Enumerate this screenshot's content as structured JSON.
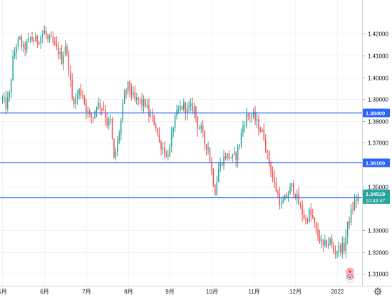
{
  "chart_data": {
    "type": "candlestick",
    "y_axis": {
      "range": [
        1.3045,
        1.4355
      ],
      "ticks": [
        "1.42000",
        "1.41000",
        "1.40000",
        "1.39000",
        "1.38000",
        "1.37000",
        "1.35000",
        "1.33000",
        "1.32000",
        "1.31000"
      ],
      "tick_values": [
        1.42,
        1.41,
        1.4,
        1.39,
        1.38,
        1.37,
        1.35,
        1.33,
        1.32,
        1.31
      ],
      "position": "right"
    },
    "x_axis": {
      "labels": [
        "5月",
        "6月",
        "7月",
        "8月",
        "9月",
        "10月",
        "11月",
        "12月",
        "2022"
      ],
      "label_indices": [
        0,
        24,
        48,
        72,
        96,
        120,
        144,
        168,
        192
      ]
    },
    "horizontal_lines": [
      {
        "value": 1.384,
        "label": "1.38400",
        "color": "#2962ff"
      },
      {
        "value": 1.361,
        "label": "1.36100",
        "color": "#2962ff"
      },
      {
        "value": 1.345,
        "label": "1.34500",
        "color": "#2962ff"
      }
    ],
    "current_price": {
      "value": 1.34519,
      "label": "1.34519",
      "countdown": "10:43:47",
      "color": "#26a69a"
    },
    "colors": {
      "up": "#26a69a",
      "down": "#ef5350",
      "grid": "#f0f3fa"
    },
    "grid": true,
    "waypoints": [
      [
        0,
        1.39
      ],
      [
        2,
        1.387
      ],
      [
        4,
        1.392
      ],
      [
        6,
        1.408
      ],
      [
        8,
        1.415
      ],
      [
        10,
        1.417
      ],
      [
        12,
        1.413
      ],
      [
        14,
        1.415
      ],
      [
        16,
        1.418
      ],
      [
        18,
        1.417
      ],
      [
        20,
        1.417
      ],
      [
        22,
        1.419
      ],
      [
        24,
        1.421
      ],
      [
        26,
        1.417
      ],
      [
        28,
        1.417
      ],
      [
        30,
        1.414
      ],
      [
        32,
        1.412
      ],
      [
        34,
        1.408
      ],
      [
        36,
        1.415
      ],
      [
        38,
        1.405
      ],
      [
        40,
        1.39
      ],
      [
        42,
        1.39
      ],
      [
        44,
        1.394
      ],
      [
        46,
        1.392
      ],
      [
        48,
        1.386
      ],
      [
        50,
        1.382
      ],
      [
        52,
        1.382
      ],
      [
        54,
        1.388
      ],
      [
        56,
        1.387
      ],
      [
        58,
        1.386
      ],
      [
        60,
        1.379
      ],
      [
        62,
        1.38
      ],
      [
        64,
        1.362
      ],
      [
        66,
        1.37
      ],
      [
        68,
        1.38
      ],
      [
        70,
        1.392
      ],
      [
        72,
        1.396
      ],
      [
        74,
        1.393
      ],
      [
        76,
        1.389
      ],
      [
        78,
        1.39
      ],
      [
        80,
        1.388
      ],
      [
        82,
        1.388
      ],
      [
        84,
        1.383
      ],
      [
        86,
        1.381
      ],
      [
        88,
        1.378
      ],
      [
        90,
        1.37
      ],
      [
        92,
        1.368
      ],
      [
        94,
        1.364
      ],
      [
        96,
        1.367
      ],
      [
        98,
        1.378
      ],
      [
        100,
        1.383
      ],
      [
        102,
        1.386
      ],
      [
        104,
        1.387
      ],
      [
        106,
        1.385
      ],
      [
        108,
        1.386
      ],
      [
        110,
        1.386
      ],
      [
        112,
        1.378
      ],
      [
        114,
        1.376
      ],
      [
        116,
        1.37
      ],
      [
        118,
        1.368
      ],
      [
        120,
        1.357
      ],
      [
        122,
        1.348
      ],
      [
        124,
        1.358
      ],
      [
        126,
        1.362
      ],
      [
        128,
        1.364
      ],
      [
        130,
        1.364
      ],
      [
        132,
        1.363
      ],
      [
        134,
        1.364
      ],
      [
        136,
        1.37
      ],
      [
        138,
        1.378
      ],
      [
        140,
        1.382
      ],
      [
        142,
        1.383
      ],
      [
        144,
        1.382
      ],
      [
        146,
        1.379
      ],
      [
        148,
        1.376
      ],
      [
        150,
        1.373
      ],
      [
        152,
        1.364
      ],
      [
        154,
        1.358
      ],
      [
        156,
        1.351
      ],
      [
        158,
        1.346
      ],
      [
        160,
        1.341
      ],
      [
        162,
        1.344
      ],
      [
        164,
        1.347
      ],
      [
        166,
        1.35
      ],
      [
        168,
        1.347
      ],
      [
        170,
        1.342
      ],
      [
        172,
        1.338
      ],
      [
        174,
        1.334
      ],
      [
        176,
        1.338
      ],
      [
        178,
        1.335
      ],
      [
        180,
        1.329
      ],
      [
        182,
        1.326
      ],
      [
        184,
        1.322
      ],
      [
        186,
        1.324
      ],
      [
        188,
        1.325
      ],
      [
        190,
        1.32
      ],
      [
        192,
        1.321
      ],
      [
        194,
        1.322
      ],
      [
        196,
        1.322
      ],
      [
        198,
        1.332
      ],
      [
        200,
        1.338
      ],
      [
        202,
        1.343
      ],
      [
        204,
        1.3452
      ]
    ],
    "candle_count": 205
  },
  "icons": {
    "settings": "gear-icon",
    "event_badge": "flag-badge-icon"
  }
}
